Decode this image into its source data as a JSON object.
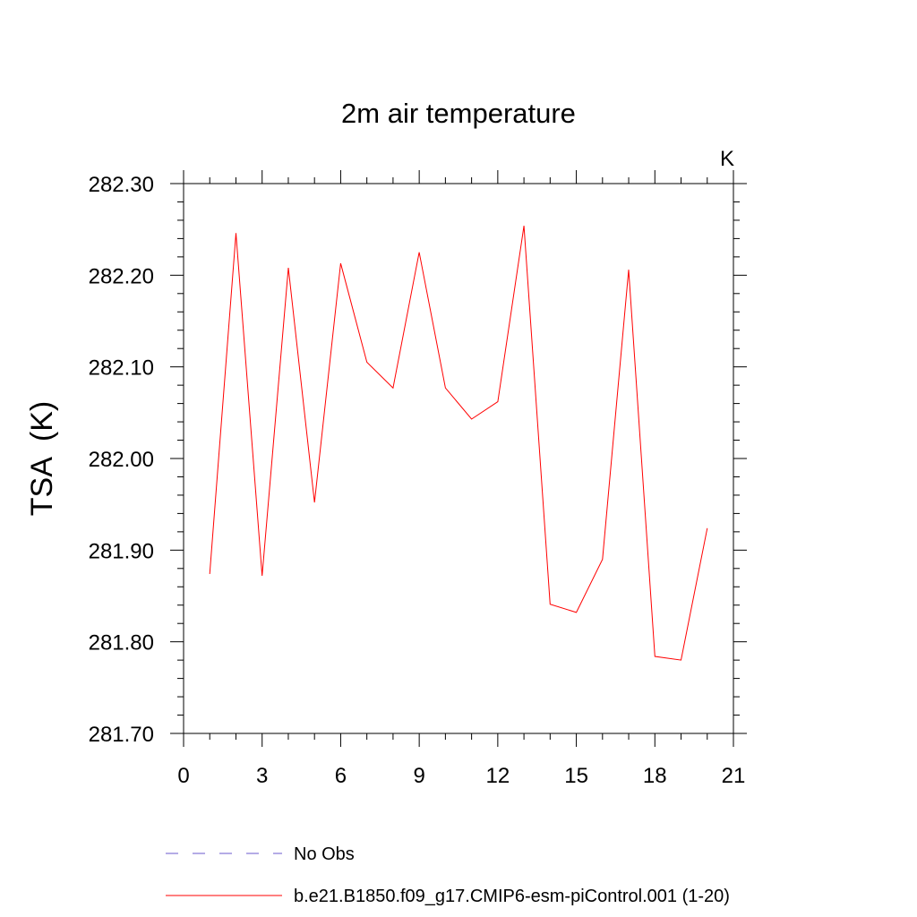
{
  "chart_data": {
    "type": "line",
    "title": "2m air temperature",
    "units_label": "K",
    "ylabel": "TSA  (K)",
    "xlabel": "",
    "xlim": [
      0,
      21
    ],
    "ylim": [
      281.7,
      282.3
    ],
    "x_ticks": [
      0,
      3,
      6,
      9,
      12,
      15,
      18,
      21
    ],
    "x_tick_labels": [
      "0",
      "3",
      "6",
      "9",
      "12",
      "15",
      "18",
      "21"
    ],
    "y_ticks": [
      281.7,
      281.8,
      281.9,
      282.0,
      282.1,
      282.2,
      282.3
    ],
    "y_tick_labels": [
      "281.70",
      "281.80",
      "281.90",
      "282.00",
      "282.10",
      "282.20",
      "282.30"
    ],
    "x_minor_step": 1,
    "y_minor_step": 0.02,
    "series": [
      {
        "name": "b.e21.B1850.f09_g17.CMIP6-esm-piControl.001 (1-20)",
        "color": "#ff0000",
        "x": [
          1,
          2,
          3,
          4,
          5,
          6,
          7,
          8,
          9,
          10,
          11,
          12,
          13,
          14,
          15,
          16,
          17,
          18,
          19,
          20
        ],
        "y": [
          281.874,
          282.246,
          281.872,
          282.208,
          281.952,
          282.213,
          282.105,
          282.077,
          282.225,
          282.077,
          282.043,
          282.062,
          282.254,
          281.841,
          281.832,
          281.89,
          282.206,
          281.784,
          281.78,
          281.924
        ]
      }
    ],
    "legend": [
      {
        "label": "No Obs",
        "color": "#6a5acd",
        "style": "dashed"
      },
      {
        "label": "b.e21.B1850.f09_g17.CMIP6-esm-piControl.001 (1-20)",
        "color": "#ff0000",
        "style": "solid"
      }
    ],
    "legend_placement": "bottom"
  }
}
